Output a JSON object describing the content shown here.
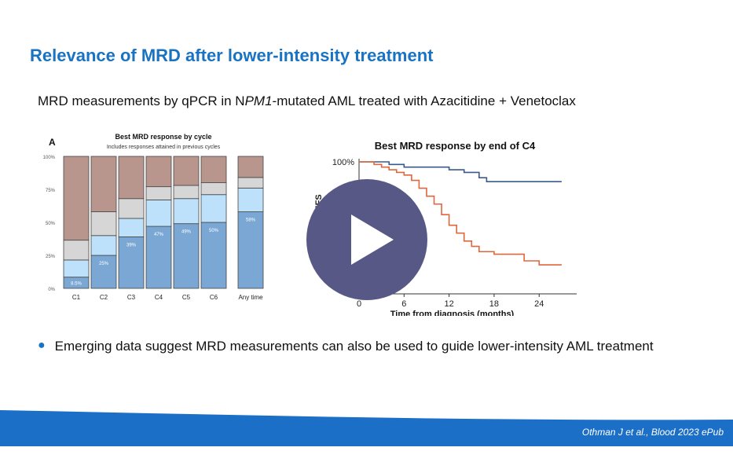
{
  "slide": {
    "title": "Relevance of MRD after lower-intensity treatment",
    "subtitle_pre": "MRD measurements by qPCR in N",
    "subtitle_italic": "PM1",
    "subtitle_post": "-mutated AML treated with Azacitidine + Venetoclax",
    "bullet": "Emerging data suggest MRD measurements can also be used to guide lower-intensity AML treatment",
    "citation": "Othman J et al., Blood 2023 ePub"
  },
  "colors": {
    "title": "#1a73c2",
    "footer_blue": "#1b6fc7",
    "play_button": "#575885",
    "seg_blue": "#7ba7d4",
    "seg_lightblue": "#bde0fb",
    "seg_grey": "#d6d6d6",
    "seg_mauve": "#b8968e",
    "line_blue": "#3a5a8c",
    "line_red": "#e0663c"
  },
  "video": {
    "play_icon": "play-icon"
  },
  "chart_data": [
    {
      "type": "bar",
      "panel_label": "A",
      "title": "Best MRD response by cycle",
      "subtitle": "Includes responses attained in previous cycles",
      "stacked": true,
      "categories": [
        "C1",
        "C2",
        "C3",
        "C4",
        "C5",
        "C6",
        "Any time"
      ],
      "yticks": [
        "100%",
        "75%",
        "50%",
        "25%",
        "0%"
      ],
      "ylim": [
        0,
        100
      ],
      "series": [
        {
          "name": "bottom",
          "values": [
            8.5,
            25,
            39,
            47,
            49,
            50,
            58
          ]
        },
        {
          "name": "second",
          "values": [
            13,
            15,
            14,
            20,
            19,
            21,
            18
          ]
        },
        {
          "name": "third",
          "values": [
            15,
            18,
            15,
            10,
            10,
            9,
            8
          ]
        },
        {
          "name": "top",
          "values": [
            63.5,
            42,
            32,
            23,
            22,
            20,
            16
          ]
        }
      ],
      "data_labels": [
        "8.5%",
        "25%",
        "39%",
        "47%",
        "49%",
        "50%",
        "58%"
      ]
    },
    {
      "type": "line",
      "title": "Best MRD response by end of C4",
      "xlabel": "Time from diagnosis (months)",
      "ylabel": "EFS",
      "xticks": [
        "0",
        "6",
        "12",
        "18",
        "24"
      ],
      "ytick_label": "100%",
      "xlim": [
        0,
        29
      ],
      "ylim": [
        0,
        100
      ],
      "series": [
        {
          "name": "blue",
          "x": [
            0,
            2,
            4,
            6,
            9,
            12,
            14,
            16,
            17,
            20,
            24,
            27
          ],
          "y": [
            100,
            100,
            98,
            96,
            96,
            94,
            92,
            88,
            85,
            85,
            85,
            85
          ]
        },
        {
          "name": "red",
          "x": [
            0,
            2,
            3,
            4,
            5,
            6,
            7,
            8,
            9,
            10,
            11,
            12,
            13,
            14,
            15,
            16,
            18,
            20,
            22,
            24,
            27
          ],
          "y": [
            100,
            98,
            96,
            94,
            92,
            90,
            86,
            80,
            74,
            68,
            60,
            52,
            46,
            40,
            36,
            32,
            30,
            30,
            25,
            22,
            22
          ]
        }
      ]
    }
  ]
}
